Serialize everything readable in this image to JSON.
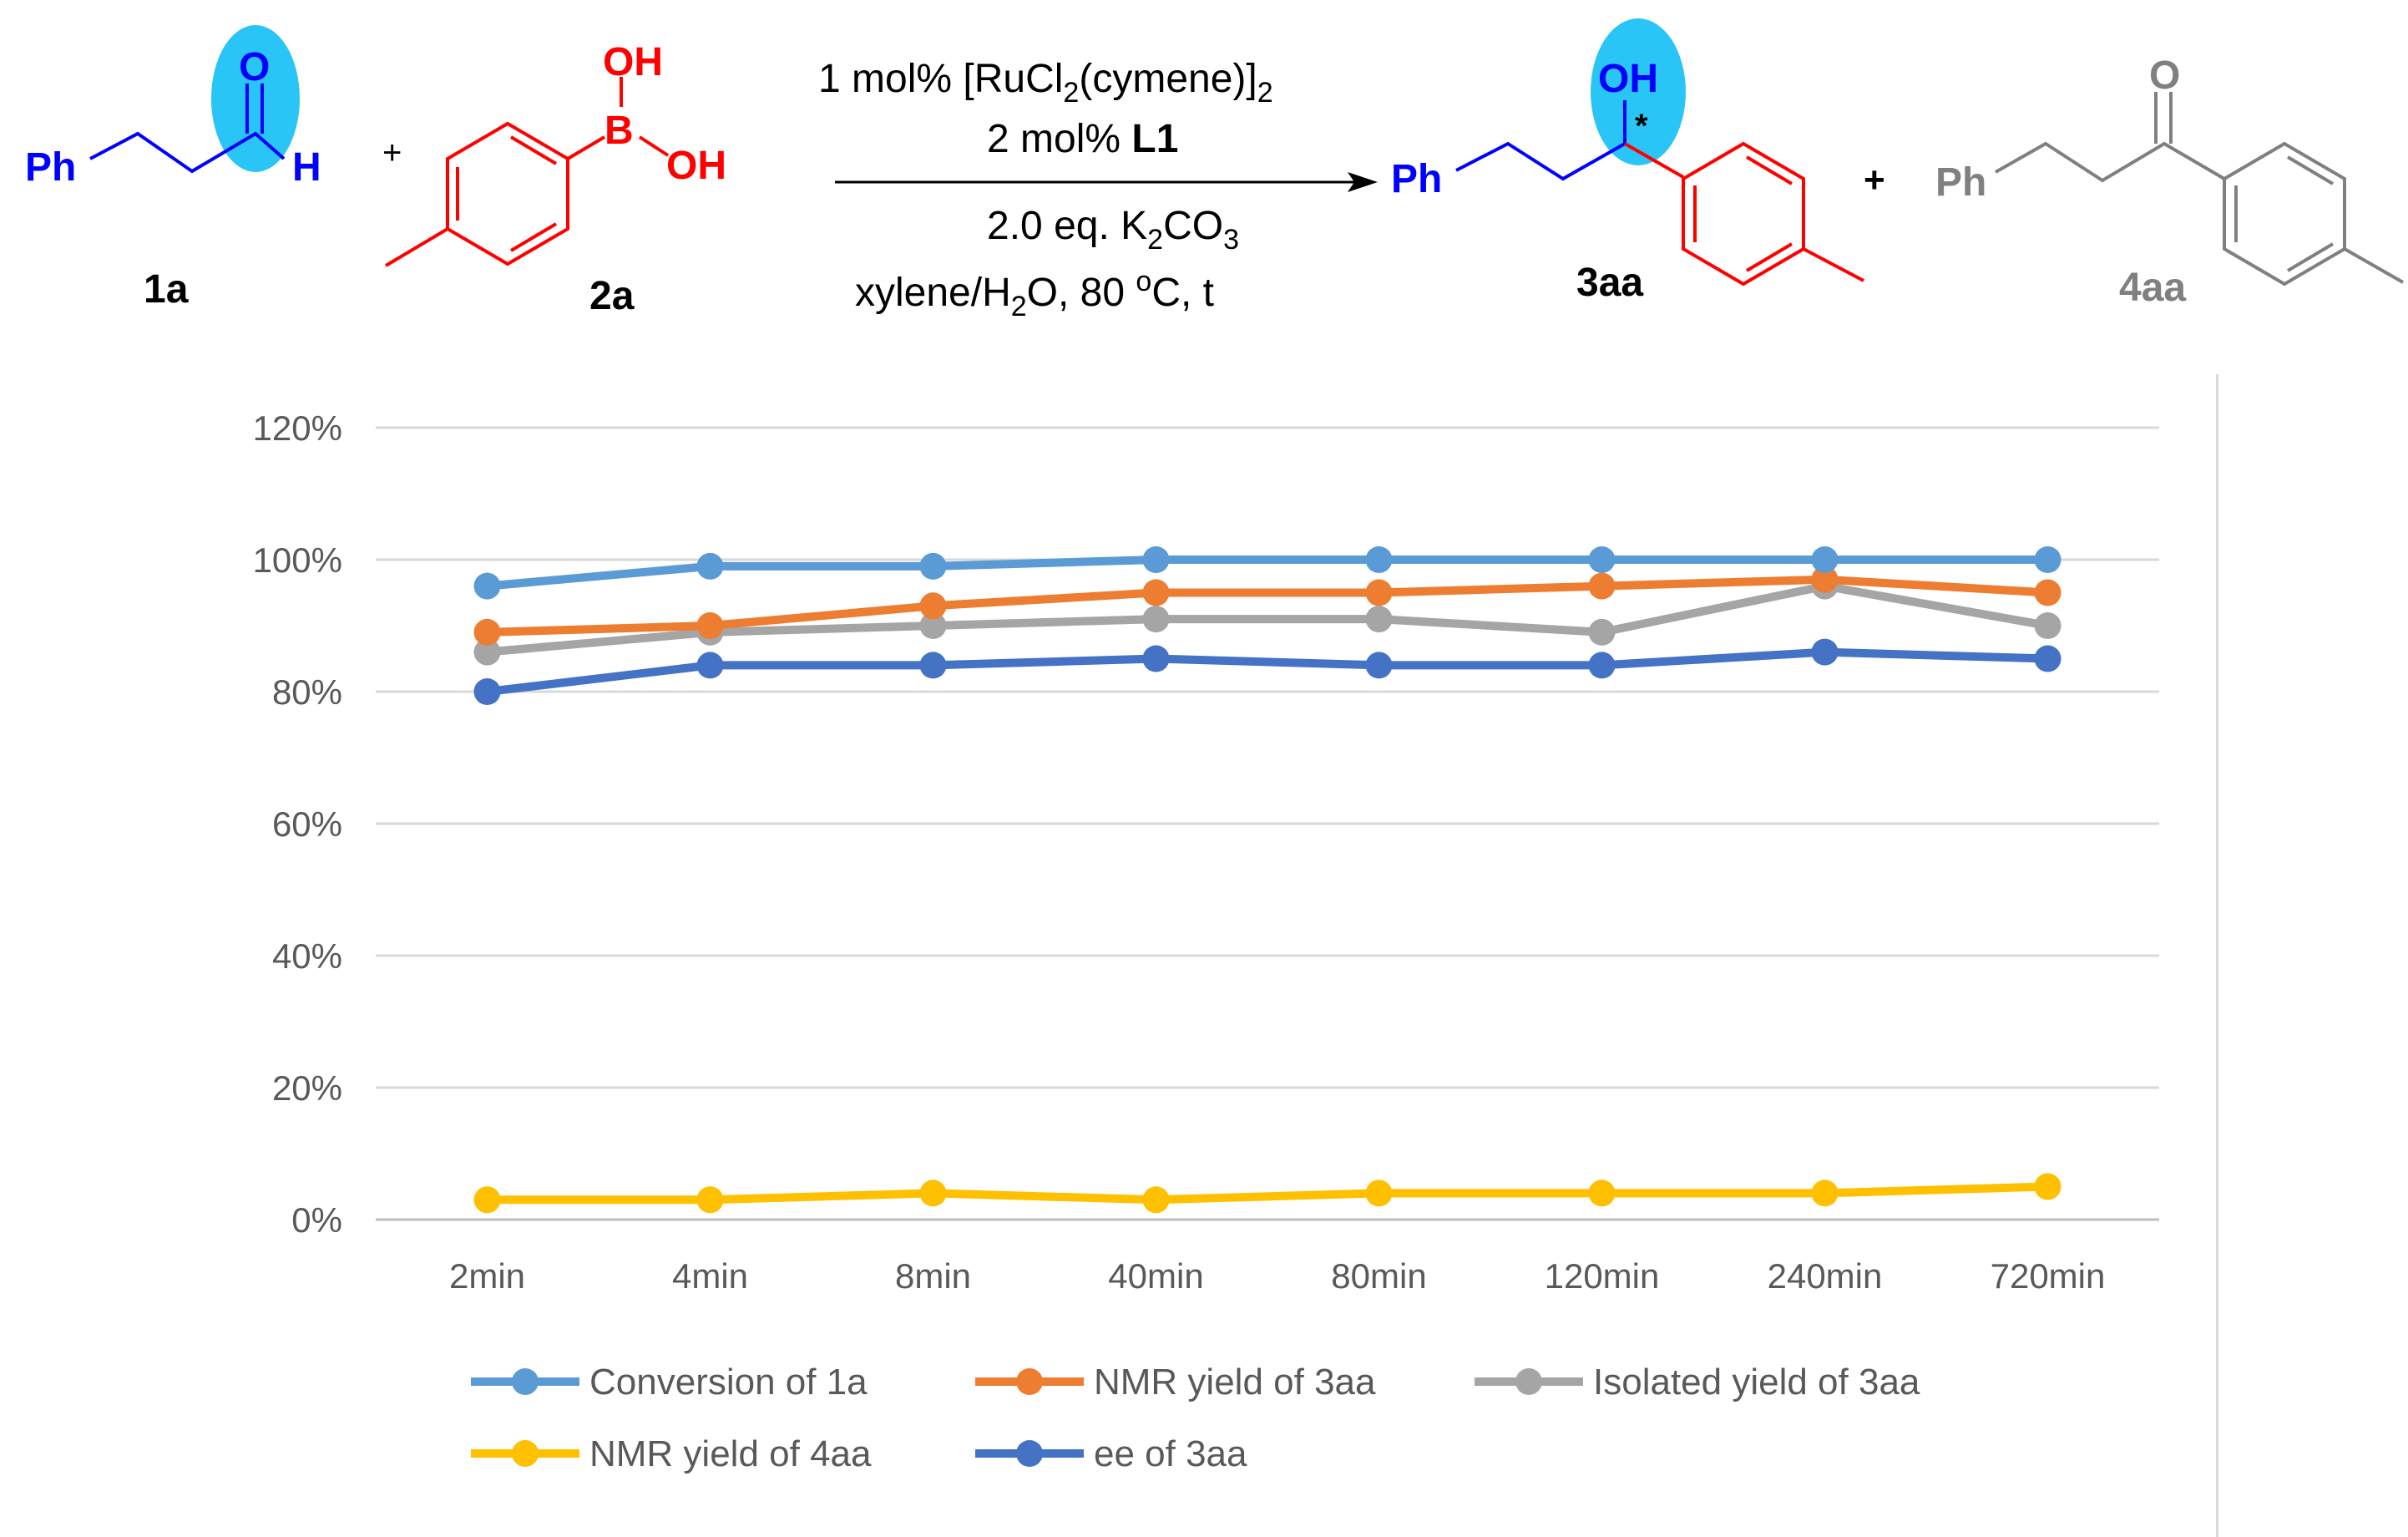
{
  "scheme": {
    "reactant_1": {
      "label": "1a",
      "ph": "Ph",
      "o": "O",
      "h": "H"
    },
    "plus_1": "+",
    "reactant_2": {
      "label": "2a",
      "oh_top": "OH",
      "boron": "B",
      "oh_right": "OH"
    },
    "conditions": {
      "line1_pre": "1 mol% [RuCl",
      "line1_sub1": "2",
      "line1_mid": "(cymene)]",
      "line1_sub2": "2",
      "line2_pre": "2 mol% ",
      "line2_bold": "L1",
      "line3_pre": "2.0 eq. K",
      "line3_sub1": "2",
      "line3_mid": "CO",
      "line3_sub2": "3",
      "line4_pre": "xylene/H",
      "line4_sub": "2",
      "line4_mid": "O, 80 ",
      "line4_sup": "o",
      "line4_post": "C, t"
    },
    "product_main": {
      "label": "3aa",
      "ph": "Ph",
      "oh": "OH",
      "star": "*"
    },
    "plus_2": "+",
    "product_side": {
      "label": "4aa",
      "ph": "Ph",
      "o": "O"
    },
    "colors": {
      "blue": "#0000ff",
      "red": "#ff0000",
      "gray": "#808080",
      "highlight": "#29c5f6"
    }
  },
  "chart_data": {
    "type": "line",
    "categories": [
      "2min",
      "4min",
      "8min",
      "40min",
      "80min",
      "120min",
      "240min",
      "720min"
    ],
    "ylim": [
      0,
      120
    ],
    "yticks": [
      "0%",
      "20%",
      "40%",
      "60%",
      "80%",
      "100%",
      "120%"
    ],
    "series": [
      {
        "name": "Conversion of 1a",
        "color": "#5b9bd5",
        "values": [
          96,
          99,
          99,
          100,
          100,
          100,
          100,
          100
        ]
      },
      {
        "name": "NMR yield of 3aa",
        "color": "#ed7d31",
        "values": [
          89,
          90,
          93,
          95,
          95,
          96,
          97,
          95
        ]
      },
      {
        "name": "Isolated yield of 3aa",
        "color": "#a5a5a5",
        "values": [
          86,
          89,
          90,
          91,
          91,
          89,
          96,
          90
        ]
      },
      {
        "name": "NMR yield of 4aa",
        "color": "#ffc000",
        "values": [
          3,
          3,
          4,
          3,
          4,
          4,
          4,
          5
        ]
      },
      {
        "name": "ee of 3aa",
        "color": "#4472c4",
        "values": [
          80,
          84,
          84,
          85,
          84,
          84,
          86,
          85
        ]
      }
    ],
    "legend_position": "bottom",
    "grid": true
  }
}
